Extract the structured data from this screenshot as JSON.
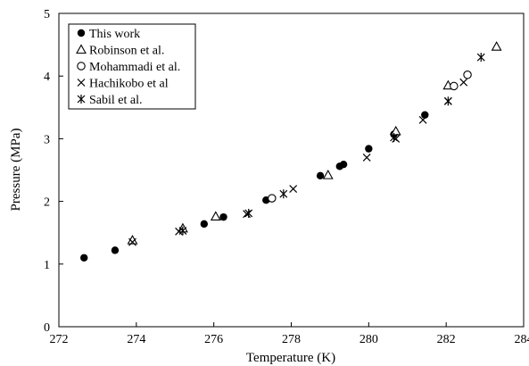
{
  "chart_data": {
    "type": "scatter",
    "title": "",
    "xlabel": "Temperature (K)",
    "ylabel": "Pressure (MPa)",
    "xlim": [
      272,
      284
    ],
    "ylim": [
      0,
      5
    ],
    "xticks": [
      272,
      274,
      276,
      278,
      280,
      282,
      284
    ],
    "yticks": [
      0,
      1,
      2,
      3,
      4,
      5
    ],
    "grid": false,
    "legend_position": "top-left",
    "series": [
      {
        "name": "This work",
        "marker": "filled-circle",
        "color": "#000000",
        "x": [
          272.65,
          273.45,
          275.75,
          276.25,
          277.35,
          278.75,
          279.25,
          279.35,
          280.0,
          280.65,
          281.45
        ],
        "y": [
          1.1,
          1.22,
          1.64,
          1.75,
          2.02,
          2.41,
          2.56,
          2.59,
          2.84,
          3.07,
          3.38
        ]
      },
      {
        "name": "Robinson et al.",
        "marker": "open-triangle",
        "color": "#000000",
        "x": [
          273.9,
          275.2,
          276.05,
          278.95,
          280.7,
          282.05,
          283.3
        ],
        "y": [
          1.38,
          1.57,
          1.76,
          2.42,
          3.12,
          3.85,
          4.47
        ]
      },
      {
        "name": "Mohammadi et al.",
        "marker": "open-circle",
        "color": "#000000",
        "x": [
          277.5,
          282.2,
          282.55
        ],
        "y": [
          2.05,
          3.84,
          4.02
        ]
      },
      {
        "name": "Hachikobo et al",
        "marker": "cross",
        "color": "#000000",
        "x": [
          273.9,
          275.1,
          276.85,
          278.05,
          279.95,
          280.7,
          281.4,
          282.05,
          282.45
        ],
        "y": [
          1.35,
          1.52,
          1.8,
          2.2,
          2.7,
          3.0,
          3.3,
          3.6,
          3.9
        ]
      },
      {
        "name": "Sabil et al.",
        "marker": "asterisk",
        "color": "#000000",
        "x": [
          275.2,
          276.9,
          277.8,
          280.65,
          282.05,
          282.9
        ],
        "y": [
          1.53,
          1.81,
          2.12,
          3.02,
          3.6,
          4.3
        ]
      }
    ]
  }
}
